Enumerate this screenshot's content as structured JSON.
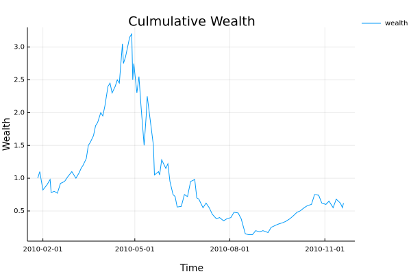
{
  "chart_data": {
    "type": "line",
    "title": "Culmulative Wealth",
    "x_label": "Time",
    "y_label": "Wealth",
    "x": [
      "2010-01-27",
      "2010-01-29",
      "2010-02-01",
      "2010-02-05",
      "2010-02-08",
      "2010-02-09",
      "2010-02-12",
      "2010-02-15",
      "2010-02-18",
      "2010-02-22",
      "2010-02-25",
      "2010-03-01",
      "2010-03-03",
      "2010-03-05",
      "2010-03-08",
      "2010-03-10",
      "2010-03-12",
      "2010-03-15",
      "2010-03-17",
      "2010-03-19",
      "2010-03-22",
      "2010-03-24",
      "2010-03-26",
      "2010-03-29",
      "2010-03-31",
      "2010-04-02",
      "2010-04-05",
      "2010-04-07",
      "2010-04-09",
      "2010-04-12",
      "2010-04-14",
      "2010-04-16",
      "2010-04-19",
      "2010-04-20",
      "2010-04-22",
      "2010-04-26",
      "2010-04-28",
      "2010-04-29",
      "2010-04-30",
      "2010-05-03",
      "2010-05-05",
      "2010-05-07",
      "2010-05-10",
      "2010-05-12",
      "2010-05-13",
      "2010-05-17",
      "2010-05-19",
      "2010-05-20",
      "2010-05-24",
      "2010-05-25",
      "2010-05-27",
      "2010-05-31",
      "2010-06-02",
      "2010-06-04",
      "2010-06-07",
      "2010-06-09",
      "2010-06-11",
      "2010-06-15",
      "2010-06-18",
      "2010-06-21",
      "2010-06-24",
      "2010-06-28",
      "2010-06-30",
      "2010-07-02",
      "2010-07-06",
      "2010-07-09",
      "2010-07-12",
      "2010-07-15",
      "2010-07-19",
      "2010-07-22",
      "2010-07-26",
      "2010-07-29",
      "2010-08-02",
      "2010-08-05",
      "2010-08-09",
      "2010-08-12",
      "2010-08-16",
      "2010-08-19",
      "2010-08-23",
      "2010-08-26",
      "2010-08-30",
      "2010-09-02",
      "2010-09-07",
      "2010-09-10",
      "2010-09-14",
      "2010-09-17",
      "2010-09-21",
      "2010-09-24",
      "2010-09-28",
      "2010-10-01",
      "2010-10-05",
      "2010-10-08",
      "2010-10-12",
      "2010-10-15",
      "2010-10-19",
      "2010-10-22",
      "2010-10-26",
      "2010-10-29",
      "2010-11-02",
      "2010-11-05",
      "2010-11-09",
      "2010-11-12",
      "2010-11-16",
      "2010-11-18",
      "2010-11-19"
    ],
    "series": [
      {
        "name": "wealth",
        "color": "#009af9",
        "values": [
          1.0,
          1.1,
          0.82,
          0.9,
          0.98,
          0.78,
          0.8,
          0.77,
          0.92,
          0.95,
          1.02,
          1.1,
          1.05,
          1.0,
          1.08,
          1.15,
          1.2,
          1.3,
          1.5,
          1.55,
          1.65,
          1.8,
          1.85,
          2.0,
          1.95,
          2.1,
          2.4,
          2.45,
          2.3,
          2.4,
          2.5,
          2.45,
          3.05,
          2.75,
          2.85,
          3.15,
          3.2,
          2.5,
          2.75,
          2.3,
          2.55,
          2.1,
          1.5,
          1.95,
          2.25,
          1.75,
          1.5,
          1.05,
          1.1,
          1.05,
          1.28,
          1.15,
          1.22,
          0.95,
          0.75,
          0.72,
          0.56,
          0.57,
          0.75,
          0.72,
          0.95,
          0.98,
          0.7,
          0.68,
          0.55,
          0.62,
          0.55,
          0.45,
          0.38,
          0.4,
          0.35,
          0.38,
          0.4,
          0.48,
          0.47,
          0.38,
          0.15,
          0.14,
          0.14,
          0.2,
          0.18,
          0.2,
          0.17,
          0.25,
          0.28,
          0.3,
          0.32,
          0.34,
          0.38,
          0.42,
          0.48,
          0.5,
          0.55,
          0.58,
          0.6,
          0.75,
          0.74,
          0.62,
          0.6,
          0.65,
          0.55,
          0.68,
          0.62,
          0.55,
          0.62
        ]
      }
    ],
    "xlim": [
      "2010-01-17",
      "2010-11-30"
    ],
    "xticks": [
      "2010-02-01",
      "2010-05-01",
      "2010-08-01",
      "2010-11-01"
    ],
    "ylim": [
      0.04,
      3.3
    ],
    "yticks": [
      0.5,
      {
        "value": 1,
        "label": "1.0"
      },
      1.5,
      {
        "value": 2,
        "label": "2.0"
      },
      2.5,
      {
        "value": 3,
        "label": "3.0"
      }
    ],
    "grid": true,
    "legend": "outer-top-right"
  }
}
